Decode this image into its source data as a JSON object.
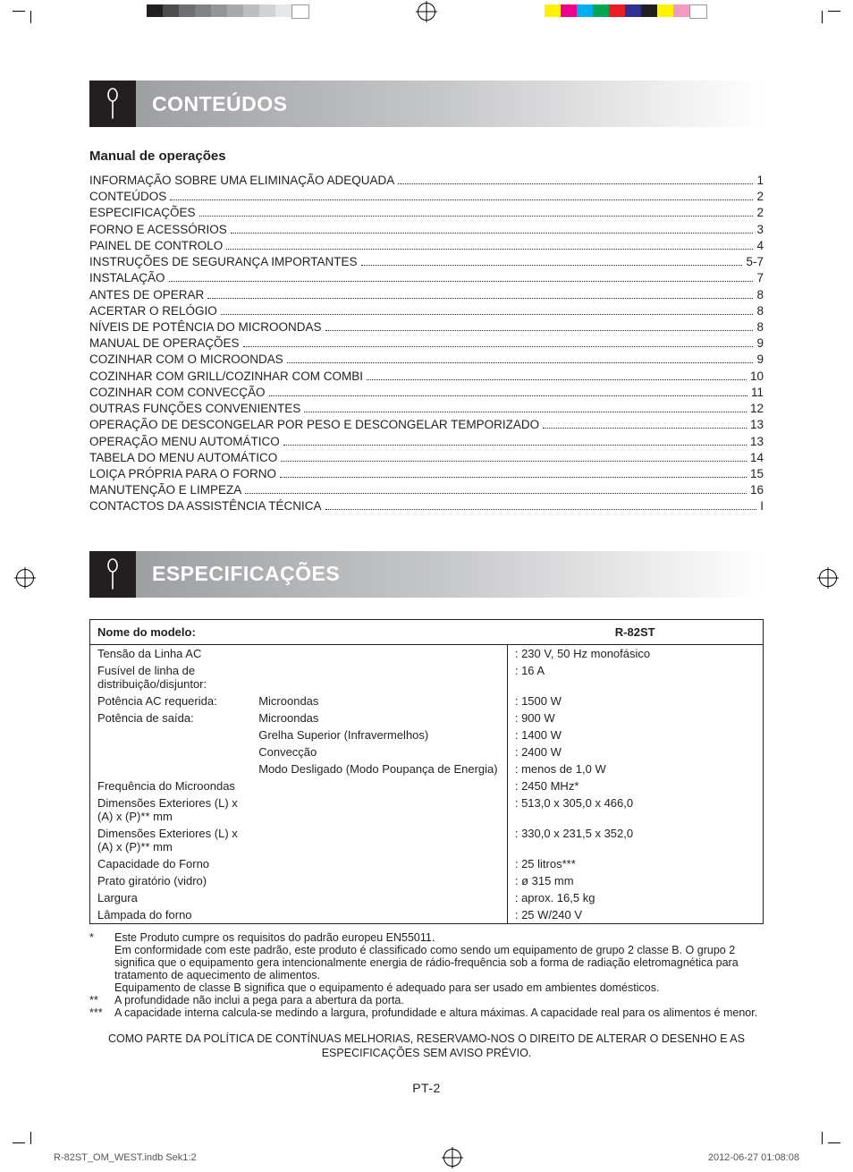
{
  "colors": {
    "text": "#231f20",
    "header_gradient_from": "#9d9fa2",
    "header_gradient_mid": "#c7c8ca",
    "header_gradient_to": "#ffffff",
    "icon_bg": "#231f20",
    "grey_bar": [
      "#231f20",
      "#4d4d4f",
      "#6d6e71",
      "#808285",
      "#939598",
      "#a7a9ac",
      "#bcbec0",
      "#d1d3d4",
      "#e6e7e8",
      "#ffffff"
    ],
    "cmyk_bar": [
      "#fff200",
      "#ec008c",
      "#00aeef",
      "#00a651",
      "#ed1c24",
      "#2e3192",
      "#231f20",
      "#fff200",
      "#f49ac1",
      "#ffffff"
    ]
  },
  "sections": {
    "contents_title": "CONTEÚDOS",
    "specs_title": "ESPECIFICAÇÕES",
    "subheading": "Manual de operações"
  },
  "toc": [
    {
      "label": "INFORMAÇÃO SOBRE UMA ELIMINAÇÃO ADEQUADA",
      "page": "1"
    },
    {
      "label": "CONTEÚDOS",
      "page": "2"
    },
    {
      "label": "ESPECIFICAÇÕES",
      "page": "2"
    },
    {
      "label": "FORNO E ACESSÓRIOS",
      "page": "3"
    },
    {
      "label": "PAINEL DE CONTROLO",
      "page": "4"
    },
    {
      "label": "INSTRUÇÕES DE SEGURANÇA IMPORTANTES",
      "page": "5-7"
    },
    {
      "label": "INSTALAÇÃO",
      "page": "7"
    },
    {
      "label": "ANTES DE OPERAR",
      "page": "8"
    },
    {
      "label": "ACERTAR O RELÓGIO",
      "page": "8"
    },
    {
      "label": "NÍVEIS DE POTÊNCIA DO MICROONDAS",
      "page": "8"
    },
    {
      "label": "MANUAL DE OPERAÇÕES",
      "page": "9"
    },
    {
      "label": "COZINHAR COM O MICROONDAS",
      "page": "9"
    },
    {
      "label": "COZINHAR COM GRILL/COZINHAR COM COMBI",
      "page": "10"
    },
    {
      "label": "COZINHAR COM CONVECÇÃO",
      "page": "11"
    },
    {
      "label": "OUTRAS FUNÇÕES CONVENIENTES",
      "page": "12"
    },
    {
      "label": "OPERAÇÃO DE DESCONGELAR POR PESO E DESCONGELAR TEMPORIZADO",
      "page": "13"
    },
    {
      "label": "OPERAÇÃO MENU AUTOMÁTICO",
      "page": "13"
    },
    {
      "label": "TABELA DO MENU AUTOMÁTICO",
      "page": "14"
    },
    {
      "label": "LOIÇA PRÓPRIA PARA O FORNO",
      "page": "15"
    },
    {
      "label": "MANUTENÇÃO E LIMPEZA",
      "page": "16"
    },
    {
      "label": "CONTACTOS DA ASSISTÊNCIA TÉCNICA",
      "page": "I"
    }
  ],
  "spec_table": {
    "header_label": "Nome do modelo:",
    "header_model": "R-82ST",
    "rows": [
      {
        "l1": "Tensão da Linha AC",
        "l2": "",
        "val": ": 230 V, 50 Hz monofásico"
      },
      {
        "l1": "Fusível de linha de distribuição/disjuntor:",
        "l2": "",
        "val": ": 16 A"
      },
      {
        "l1": "Potência AC requerida:",
        "l2": "Microondas",
        "val": ": 1500 W"
      },
      {
        "l1": "Potência de saída:",
        "l2": "Microondas",
        "val": ": 900 W"
      },
      {
        "l1": "",
        "l2": "Grelha Superior (Infravermelhos)",
        "val": ": 1400 W"
      },
      {
        "l1": "",
        "l2": "Convecção",
        "val": ": 2400 W"
      },
      {
        "l1": "",
        "l2": "Modo Desligado (Modo Poupança de Energia)",
        "val": ": menos de 1,0 W"
      },
      {
        "l1": "Frequência do Microondas",
        "l2": "",
        "val": ": 2450 MHz*"
      },
      {
        "l1": "Dimensões Exteriores (L) x (A) x (P)** mm",
        "l2": "",
        "val": ": 513,0 x 305,0 x 466,0"
      },
      {
        "l1": "Dimensões Exteriores (L) x (A) x (P)** mm",
        "l2": "",
        "val": ": 330,0 x 231,5 x 352,0"
      },
      {
        "l1": "Capacidade do Forno",
        "l2": "",
        "val": ": 25 litros***"
      },
      {
        "l1": "Prato giratório (vidro)",
        "l2": "",
        "val": ": ø 315 mm"
      },
      {
        "l1": "Largura",
        "l2": "",
        "val": ": aprox. 16,5  kg"
      },
      {
        "l1": "Lâmpada do forno",
        "l2": "",
        "val": ": 25 W/240 V"
      }
    ]
  },
  "footnotes": [
    {
      "mark": "*",
      "text": "Este Produto cumpre os requisitos do padrão europeu EN55011.\nEm conformidade com este padrão, este produto é classificado como sendo um equipamento de grupo 2 classe B. O grupo 2 significa que o equipamento gera intencionalmente energia de rádio-frequência sob a forma de radiação eletromagnética para tratamento de aquecimento de alimentos.\nEquipamento de classe B significa que o equipamento é adequado para ser usado em ambientes domésticos."
    },
    {
      "mark": "**",
      "text": "A profundidade não inclui a pega para a abertura da porta."
    },
    {
      "mark": "***",
      "text": "A capacidade interna calcula-se medindo a largura, profundidade e altura máximas. A capacidade real para os alimentos é menor."
    }
  ],
  "policy_text": "COMO PARTE DA POLÍTICA DE CONTÍNUAS MELHORIAS, RESERVAMO-NOS O DIREITO DE ALTERAR O DESENHO E AS ESPECIFICAÇÕES SEM AVISO PRÉVIO.",
  "page_number": "PT-2",
  "imprint": {
    "file": "R-82ST_OM_WEST.indb   Sek1:2",
    "timestamp": "2012-06-27   01:08:08"
  }
}
